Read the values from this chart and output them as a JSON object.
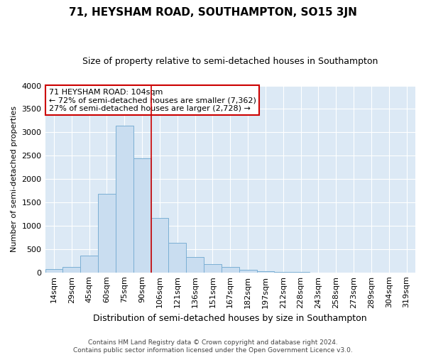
{
  "title": "71, HEYSHAM ROAD, SOUTHAMPTON, SO15 3JN",
  "subtitle": "Size of property relative to semi-detached houses in Southampton",
  "xlabel": "Distribution of semi-detached houses by size in Southampton",
  "ylabel": "Number of semi-detached properties",
  "bar_labels": [
    "14sqm",
    "29sqm",
    "45sqm",
    "60sqm",
    "75sqm",
    "90sqm",
    "106sqm",
    "121sqm",
    "136sqm",
    "151sqm",
    "167sqm",
    "182sqm",
    "197sqm",
    "212sqm",
    "228sqm",
    "243sqm",
    "258sqm",
    "273sqm",
    "289sqm",
    "304sqm",
    "319sqm"
  ],
  "bar_values": [
    65,
    110,
    360,
    1680,
    3140,
    2440,
    1170,
    640,
    330,
    185,
    110,
    60,
    20,
    8,
    3,
    1,
    0,
    0,
    0,
    0,
    0
  ],
  "bar_color": "#c9ddf0",
  "bar_edge_color": "#7bafd4",
  "property_line_x": 6.0,
  "property_line_color": "#cc0000",
  "annotation_title": "71 HEYSHAM ROAD: 104sqm",
  "annotation_line1": "← 72% of semi-detached houses are smaller (7,362)",
  "annotation_line2": "27% of semi-detached houses are larger (2,728) →",
  "annotation_box_facecolor": "#ffffff",
  "annotation_box_edgecolor": "#cc0000",
  "ylim": [
    0,
    4000
  ],
  "yticks": [
    0,
    500,
    1000,
    1500,
    2000,
    2500,
    3000,
    3500,
    4000
  ],
  "footer1": "Contains HM Land Registry data © Crown copyright and database right 2024.",
  "footer2": "Contains public sector information licensed under the Open Government Licence v3.0.",
  "bg_color": "#ffffff",
  "plot_bg_color": "#dce9f5",
  "grid_color": "#ffffff",
  "title_fontsize": 11,
  "subtitle_fontsize": 9,
  "ylabel_fontsize": 8,
  "xlabel_fontsize": 9,
  "tick_fontsize": 8
}
